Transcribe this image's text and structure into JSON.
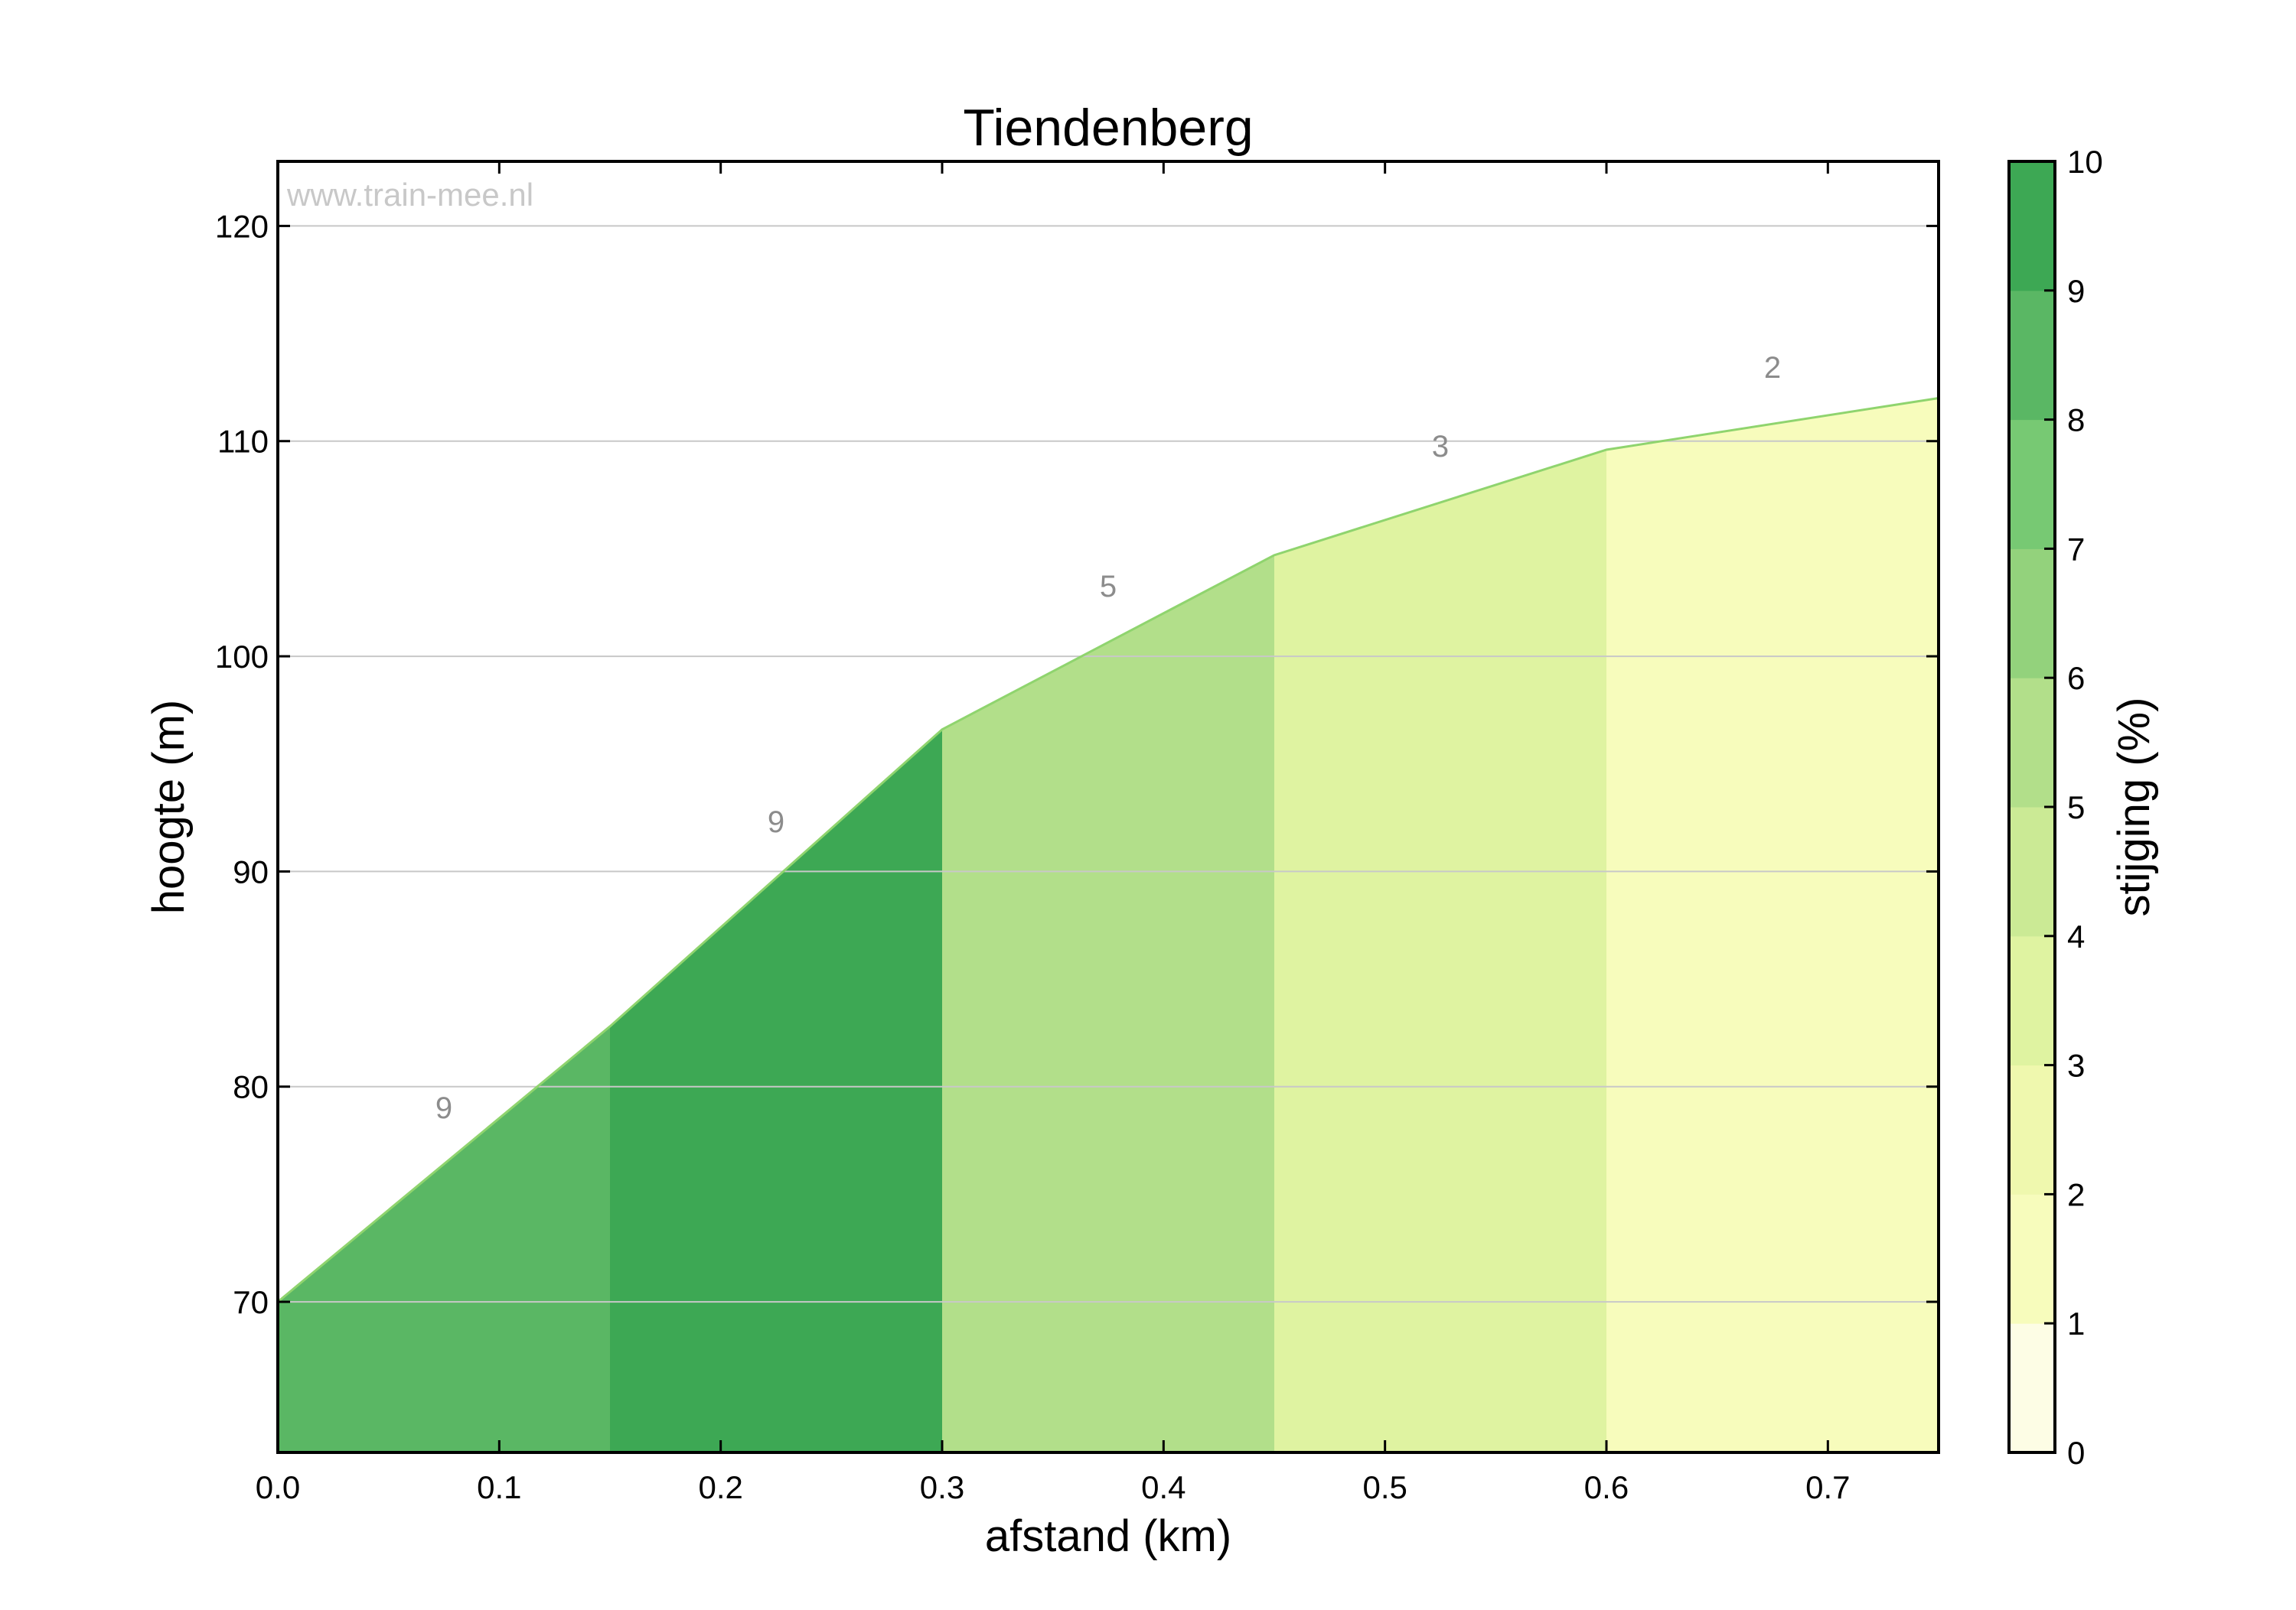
{
  "chart_data": {
    "type": "area",
    "title": "Tiendenberg",
    "xlabel": "afstand (km)",
    "ylabel": "hoogte (m)",
    "xlim": [
      0.0,
      0.75
    ],
    "ylim": [
      63,
      123
    ],
    "x_ticks": [
      "0.0",
      "0.1",
      "0.2",
      "0.3",
      "0.4",
      "0.5",
      "0.6",
      "0.7"
    ],
    "x_tick_values": [
      0.0,
      0.1,
      0.2,
      0.3,
      0.4,
      0.5,
      0.6,
      0.7
    ],
    "y_ticks": [
      "70",
      "80",
      "90",
      "100",
      "110",
      "120"
    ],
    "y_tick_values": [
      70,
      80,
      90,
      100,
      110,
      120
    ],
    "grid": "horizontal",
    "watermark": "www.train-mee.nl",
    "profile": {
      "x": [
        0.0,
        0.15,
        0.3,
        0.45,
        0.6,
        0.75
      ],
      "y": [
        70.0,
        82.8,
        96.6,
        104.7,
        109.6,
        112.0
      ]
    },
    "segments": [
      {
        "x0": 0.0,
        "x1": 0.15,
        "gradient": 9,
        "label": "9",
        "color": "#5ab764"
      },
      {
        "x0": 0.15,
        "x1": 0.3,
        "gradient": 9,
        "label": "9",
        "color": "#3da854"
      },
      {
        "x0": 0.3,
        "x1": 0.45,
        "gradient": 5,
        "label": "5",
        "color": "#b2df8a"
      },
      {
        "x0": 0.45,
        "x1": 0.6,
        "gradient": 3,
        "label": "3",
        "color": "#dff3a1"
      },
      {
        "x0": 0.6,
        "x1": 0.75,
        "gradient": 2,
        "label": "2",
        "color": "#f7fcbc"
      }
    ],
    "colorbar": {
      "label": "stijging (%)",
      "range": [
        0,
        10
      ],
      "ticks": [
        "0",
        "1",
        "2",
        "3",
        "4",
        "5",
        "6",
        "7",
        "8",
        "9",
        "10"
      ],
      "colors": [
        "#fdfde5",
        "#f7fcbc",
        "#eff8ae",
        "#dff3a1",
        "#cbea95",
        "#b2df8a",
        "#93d27c",
        "#77c973",
        "#5ab764",
        "#3da854"
      ]
    }
  }
}
